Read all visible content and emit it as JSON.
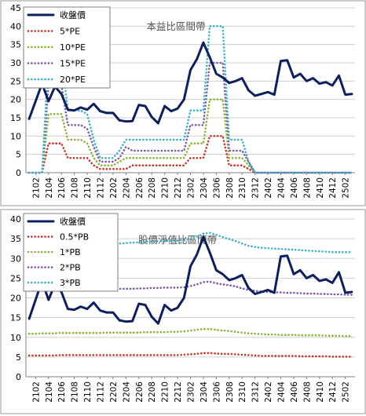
{
  "chart_data": [
    {
      "type": "line",
      "title": "本益比區間帶",
      "x": [
        "2101",
        "2102",
        "2103",
        "2104",
        "2105",
        "2106",
        "2107",
        "2108",
        "2109",
        "2110",
        "2111",
        "2112",
        "2201",
        "2202",
        "2203",
        "2204",
        "2205",
        "2206",
        "2207",
        "2208",
        "2209",
        "2210",
        "2211",
        "2212",
        "2301",
        "2302",
        "2303",
        "2304",
        "2305",
        "2306",
        "2307",
        "2308",
        "2309",
        "2310",
        "2311",
        "2312",
        "2401",
        "2402",
        "2403",
        "2404",
        "2405",
        "2406",
        "2407",
        "2408",
        "2409",
        "2410",
        "2411",
        "2412",
        "2501",
        "2502",
        "2503"
      ],
      "x_tick_labels": [
        "2102",
        "2104",
        "2106",
        "2108",
        "2110",
        "2112",
        "2202",
        "2204",
        "2206",
        "2208",
        "2210",
        "2212",
        "2302",
        "2304",
        "2306",
        "2308",
        "2310",
        "2312",
        "2402",
        "2404",
        "2406",
        "2408",
        "2410",
        "2412",
        "2502"
      ],
      "ylim": [
        0,
        45
      ],
      "y_ticks": [
        0,
        5,
        10,
        15,
        20,
        25,
        30,
        35,
        40,
        45
      ],
      "legend": "top-left",
      "grid": "horizontal",
      "series": [
        {
          "name": "收盤價",
          "style": "solid",
          "color": "#0d1f5c",
          "values": [
            14.7,
            19.5,
            24.3,
            19.5,
            23.5,
            21.5,
            17.2,
            17.0,
            17.8,
            17.2,
            18.8,
            16.8,
            16.3,
            16.3,
            14.3,
            14.0,
            14.1,
            18.5,
            18.2,
            15.2,
            13.5,
            18.2,
            16.8,
            17.5,
            20.0,
            28.0,
            31.0,
            35.5,
            31.5,
            27.0,
            26.0,
            24.5,
            25.0,
            25.8,
            22.5,
            21.0,
            21.5,
            22.0,
            21.3,
            30.5,
            30.7,
            26.0,
            27.0,
            25.0,
            25.8,
            24.3,
            24.7,
            23.8,
            26.5,
            21.3,
            21.5
          ]
        },
        {
          "name": "5*PE",
          "style": "dotted",
          "color": "#c0392b",
          "values": [
            0,
            0,
            0,
            8,
            8,
            8,
            4,
            4,
            4,
            4,
            2,
            1,
            1,
            1,
            1,
            1,
            2,
            2,
            2,
            2,
            2,
            2,
            2,
            2,
            2,
            4,
            4,
            4,
            10,
            10,
            10,
            2,
            2,
            2,
            1,
            0,
            0,
            0,
            0,
            0,
            0,
            0,
            0,
            0,
            0,
            0,
            0,
            0,
            0,
            0,
            0
          ]
        },
        {
          "name": "10*PE",
          "style": "dotted",
          "color": "#8db33a",
          "values": [
            0,
            0,
            0,
            16,
            16,
            16,
            9,
            9,
            9,
            8,
            4,
            2,
            2,
            2,
            3,
            4,
            4,
            4,
            4,
            4,
            4,
            4,
            4,
            4,
            4,
            8,
            8,
            8,
            20,
            20,
            20,
            4,
            4,
            4,
            2,
            0,
            0,
            0,
            0,
            0,
            0,
            0,
            0,
            0,
            0,
            0,
            0,
            0,
            0,
            0,
            0
          ]
        },
        {
          "name": "15*PE",
          "style": "dotted",
          "color": "#7e5aa6",
          "values": [
            0,
            0,
            0,
            24,
            24,
            24,
            13,
            13,
            13,
            12,
            7,
            3,
            3,
            3,
            4,
            7,
            6,
            6,
            6,
            6,
            6,
            6,
            6,
            6,
            6,
            13,
            13,
            13,
            30,
            30,
            30,
            6,
            6,
            6,
            3,
            0,
            0,
            0,
            0,
            0,
            0,
            0,
            0,
            0,
            0,
            0,
            0,
            0,
            0,
            0,
            0
          ]
        },
        {
          "name": "20*PE",
          "style": "dotted",
          "color": "#3fb0c6",
          "values": [
            0,
            0,
            0,
            32,
            32,
            32,
            17,
            17,
            17,
            16,
            9,
            4,
            4,
            4,
            6,
            9,
            9,
            9,
            9,
            9,
            9,
            9,
            9,
            9,
            9,
            17,
            17,
            17,
            40,
            40,
            40,
            9,
            9,
            9,
            3,
            0,
            0,
            0,
            0,
            0,
            0,
            0,
            0,
            0,
            0,
            0,
            0,
            0,
            0,
            0,
            0
          ]
        }
      ]
    },
    {
      "type": "line",
      "title": "股價淨值比區間帶",
      "x": [
        "2101",
        "2102",
        "2103",
        "2104",
        "2105",
        "2106",
        "2107",
        "2108",
        "2109",
        "2110",
        "2111",
        "2112",
        "2201",
        "2202",
        "2203",
        "2204",
        "2205",
        "2206",
        "2207",
        "2208",
        "2209",
        "2210",
        "2211",
        "2212",
        "2301",
        "2302",
        "2303",
        "2304",
        "2305",
        "2306",
        "2307",
        "2308",
        "2309",
        "2310",
        "2311",
        "2312",
        "2401",
        "2402",
        "2403",
        "2404",
        "2405",
        "2406",
        "2407",
        "2408",
        "2409",
        "2410",
        "2411",
        "2412",
        "2501",
        "2502",
        "2503"
      ],
      "x_tick_labels": [
        "2102",
        "2104",
        "2106",
        "2108",
        "2110",
        "2112",
        "2202",
        "2204",
        "2206",
        "2208",
        "2210",
        "2212",
        "2302",
        "2304",
        "2306",
        "2308",
        "2310",
        "2312",
        "2402",
        "2404",
        "2406",
        "2408",
        "2410",
        "2412",
        "2502"
      ],
      "ylim": [
        0,
        40
      ],
      "y_ticks": [
        0,
        5,
        10,
        15,
        20,
        25,
        30,
        35,
        40
      ],
      "legend": "top-left",
      "grid": "horizontal",
      "series": [
        {
          "name": "收盤價",
          "style": "solid",
          "color": "#0d1f5c",
          "values": [
            14.7,
            19.5,
            24.3,
            19.5,
            23.5,
            21.5,
            17.2,
            17.0,
            17.8,
            17.2,
            18.8,
            16.8,
            16.3,
            16.3,
            14.3,
            14.0,
            14.1,
            18.5,
            18.2,
            15.2,
            13.5,
            18.2,
            16.8,
            17.5,
            20.0,
            28.0,
            31.0,
            35.5,
            31.5,
            27.0,
            26.0,
            24.5,
            25.0,
            25.8,
            22.5,
            21.0,
            21.5,
            22.0,
            21.3,
            30.5,
            30.7,
            26.0,
            27.0,
            25.0,
            25.8,
            24.3,
            24.7,
            23.8,
            26.5,
            21.3,
            21.5
          ]
        },
        {
          "name": "0.5*PB",
          "style": "dotted",
          "color": "#c0392b",
          "values": [
            5.4,
            5.4,
            5.4,
            5.4,
            5.4,
            5.5,
            5.5,
            5.5,
            5.5,
            5.5,
            5.5,
            5.5,
            5.5,
            5.5,
            5.5,
            5.5,
            5.5,
            5.5,
            5.5,
            5.5,
            5.5,
            5.5,
            5.5,
            5.5,
            5.6,
            5.7,
            5.8,
            6.0,
            6.0,
            5.9,
            5.8,
            5.8,
            5.7,
            5.6,
            5.5,
            5.4,
            5.3,
            5.3,
            5.3,
            5.3,
            5.3,
            5.3,
            5.2,
            5.2,
            5.2,
            5.2,
            5.2,
            5.1,
            5.1,
            5.1,
            5.1
          ]
        },
        {
          "name": "1*PB",
          "style": "dotted",
          "color": "#8db33a",
          "values": [
            10.9,
            10.9,
            11.0,
            11.0,
            11.0,
            11.1,
            11.1,
            11.1,
            11.1,
            11.1,
            11.1,
            11.1,
            11.2,
            11.2,
            11.2,
            11.2,
            11.2,
            11.2,
            11.3,
            11.3,
            11.3,
            11.3,
            11.4,
            11.4,
            11.5,
            11.7,
            11.9,
            12.1,
            12.1,
            11.9,
            11.7,
            11.6,
            11.4,
            11.2,
            11.0,
            10.9,
            10.8,
            10.7,
            10.7,
            10.6,
            10.6,
            10.6,
            10.5,
            10.5,
            10.5,
            10.5,
            10.4,
            10.4,
            10.4,
            10.3,
            10.3
          ]
        },
        {
          "name": "2*PB",
          "style": "dotted",
          "color": "#7e5aa6",
          "values": [
            21.8,
            21.8,
            21.9,
            22.0,
            22.0,
            22.1,
            22.1,
            22.1,
            22.1,
            22.1,
            22.1,
            22.2,
            22.2,
            22.3,
            22.3,
            22.3,
            22.3,
            22.4,
            22.4,
            22.5,
            22.5,
            22.6,
            22.6,
            22.6,
            22.7,
            23.0,
            23.4,
            24.0,
            24.1,
            23.7,
            23.4,
            23.2,
            22.9,
            22.4,
            22.0,
            21.8,
            21.6,
            21.5,
            21.4,
            21.4,
            21.3,
            21.3,
            21.2,
            21.1,
            21.1,
            21.0,
            21.0,
            20.9,
            20.9,
            20.8,
            20.8
          ]
        },
        {
          "name": "3*PB",
          "style": "dotted",
          "color": "#3fb0c6",
          "values": [
            32.7,
            32.7,
            32.8,
            32.9,
            33.0,
            33.1,
            33.2,
            33.3,
            33.3,
            33.3,
            33.4,
            33.5,
            33.6,
            33.7,
            33.8,
            33.9,
            34.0,
            34.1,
            34.2,
            34.3,
            34.4,
            34.5,
            34.5,
            34.5,
            34.6,
            35.0,
            35.5,
            36.3,
            36.5,
            36.0,
            35.4,
            34.9,
            34.4,
            33.8,
            33.2,
            32.9,
            32.7,
            32.6,
            32.5,
            32.4,
            32.3,
            32.2,
            32.1,
            32.0,
            31.9,
            31.8,
            31.7,
            31.6,
            31.6,
            31.6,
            31.6
          ]
        }
      ]
    }
  ]
}
